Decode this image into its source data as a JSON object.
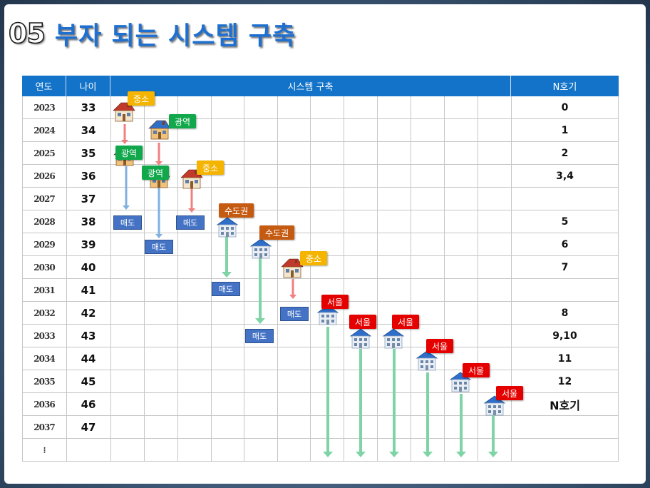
{
  "slide": {
    "number": "05",
    "title": "부자 되는 시스템 구축"
  },
  "table": {
    "headers": {
      "year": "연도",
      "age": "나이",
      "system": "시스템 구축",
      "n": "N호기"
    },
    "rows": [
      {
        "year": "2023",
        "age": "33",
        "n": "0"
      },
      {
        "year": "2024",
        "age": "34",
        "n": "1"
      },
      {
        "year": "2025",
        "age": "35",
        "n": "2"
      },
      {
        "year": "2026",
        "age": "36",
        "n": "3,4"
      },
      {
        "year": "2027",
        "age": "37",
        "n": ""
      },
      {
        "year": "2028",
        "age": "38",
        "n": "5"
      },
      {
        "year": "2029",
        "age": "39",
        "n": "6"
      },
      {
        "year": "2030",
        "age": "40",
        "n": "7"
      },
      {
        "year": "2031",
        "age": "41",
        "n": ""
      },
      {
        "year": "2032",
        "age": "42",
        "n": "8"
      },
      {
        "year": "2033",
        "age": "43",
        "n": "9,10"
      },
      {
        "year": "2034",
        "age": "44",
        "n": "11"
      },
      {
        "year": "2035",
        "age": "45",
        "n": "12"
      },
      {
        "year": "2036",
        "age": "46",
        "n": "N호기"
      },
      {
        "year": "2037",
        "age": "47",
        "n": ""
      },
      {
        "year": "⁝",
        "age": "",
        "n": ""
      }
    ]
  },
  "labels": {
    "small_city": "중소",
    "metro": "광역",
    "capital": "수도권",
    "seoul": "서울",
    "sale": "매도"
  },
  "colors": {
    "header_blue": "#1273c8",
    "title_blue": "#1d6fd1",
    "small_city": "#f4b400",
    "metro": "#11a84c",
    "capital": "#c55a11",
    "seoul": "#e50000",
    "sale": "#4472c4",
    "arrow_red": "#f08080",
    "arrow_blue": "#7fb0de",
    "arrow_green": "#7fd4a6"
  },
  "icons": {
    "house_red": "house-red-roof-icon",
    "house_blue": "house-blue-roof-icon",
    "building_blue": "building-blue-roof-icon"
  }
}
